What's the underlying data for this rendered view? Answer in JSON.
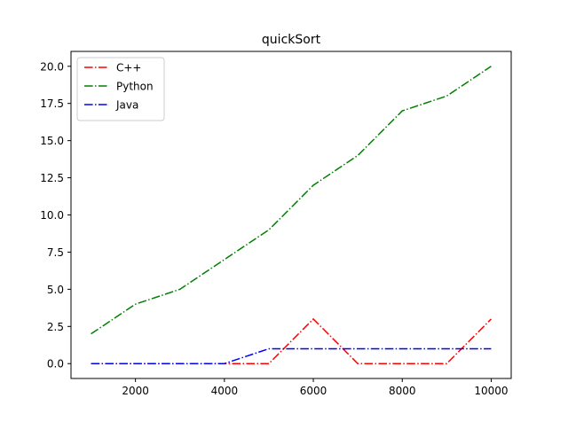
{
  "chart_data": {
    "type": "line",
    "title": "quickSort",
    "xlabel": "",
    "ylabel": "",
    "xlim": [
      550,
      10450
    ],
    "ylim": [
      -1.0,
      21.0
    ],
    "x": [
      1000,
      2000,
      3000,
      4000,
      5000,
      6000,
      7000,
      8000,
      9000,
      10000
    ],
    "xticks": [
      2000,
      4000,
      6000,
      8000,
      10000
    ],
    "yticks": [
      0.0,
      2.5,
      5.0,
      7.5,
      10.0,
      12.5,
      15.0,
      17.5,
      20.0
    ],
    "xtick_labels": [
      "2000",
      "4000",
      "6000",
      "8000",
      "10000"
    ],
    "ytick_labels": [
      "0.0",
      "2.5",
      "5.0",
      "7.5",
      "10.0",
      "12.5",
      "15.0",
      "17.5",
      "20.0"
    ],
    "grid": false,
    "legend_position": "top-left",
    "line_style": "dash-dot",
    "series": [
      {
        "name": "C++",
        "color": "#ff0000",
        "values": [
          0,
          0,
          0,
          0,
          0,
          3,
          0,
          0,
          0,
          3
        ]
      },
      {
        "name": "Python",
        "color": "#008000",
        "values": [
          2,
          4,
          5,
          7,
          9,
          12,
          14,
          17,
          18,
          20
        ]
      },
      {
        "name": "Java",
        "color": "#0000ff",
        "values": [
          0,
          0,
          0,
          0,
          1,
          1,
          1,
          1,
          1,
          1
        ]
      }
    ]
  }
}
